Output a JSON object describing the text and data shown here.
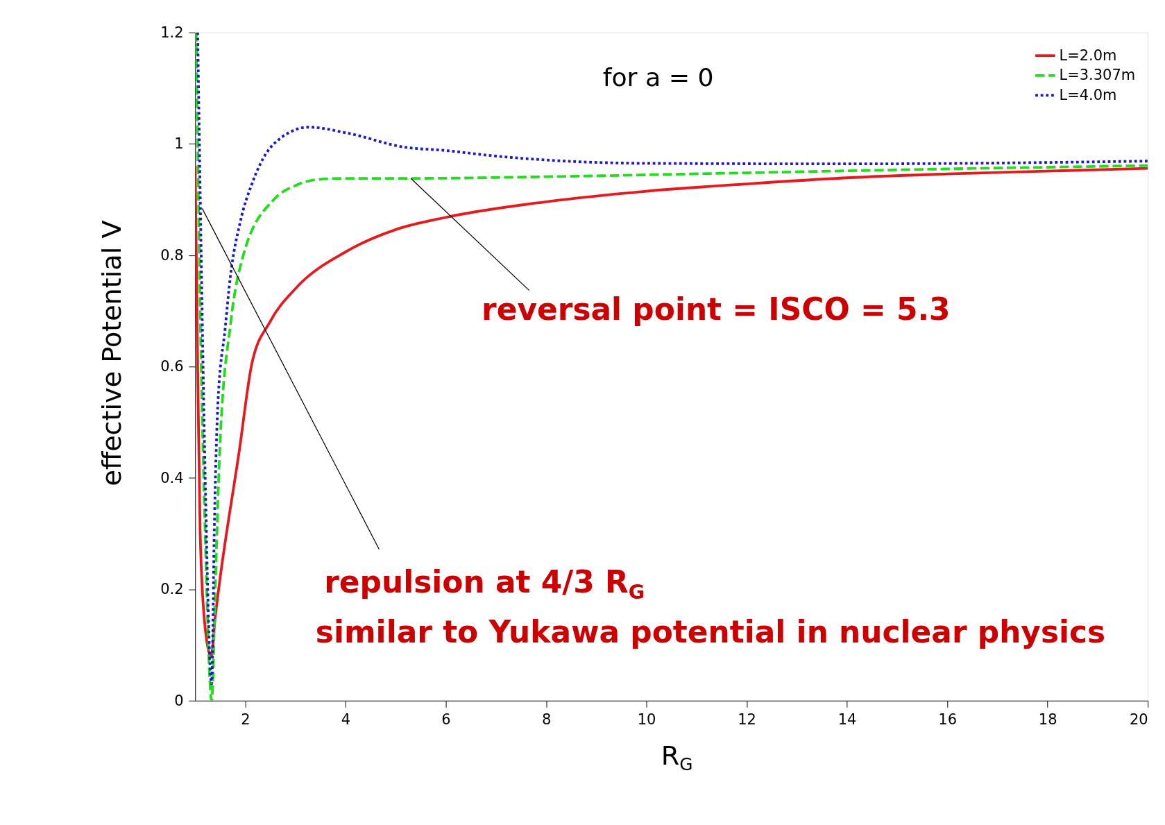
{
  "chart_data": {
    "type": "line",
    "xlabel": "R$_{G}$",
    "ylabel": "effective Potential V",
    "xlim": [
      1,
      20
    ],
    "xticks": [
      2,
      4,
      6,
      8,
      10,
      12,
      14,
      16,
      18,
      20
    ],
    "ylim": [
      0,
      1.2
    ],
    "yticks": [
      0,
      0.2,
      0.4,
      0.6,
      0.8,
      1,
      1.2
    ],
    "grid": false,
    "legend": "top right",
    "marker": "none",
    "series": [
      {
        "name": "L=2.0m",
        "color": "#e8191c",
        "line_style": "solid",
        "x": [
          1.0,
          1.05,
          1.1,
          1.2,
          1.32,
          1.4,
          1.49,
          1.88,
          2.13,
          2.49,
          3,
          4,
          5,
          6,
          8,
          10,
          12,
          14,
          16,
          20
        ],
        "values": [
          0.96,
          0.6,
          0.3,
          0.13,
          0.08,
          0.15,
          0.215,
          0.449,
          0.605,
          0.68,
          0.74,
          0.806,
          0.846,
          0.868,
          0.896,
          0.915,
          0.928,
          0.939,
          0.946,
          0.956
        ]
      },
      {
        "name": "L=3.307m",
        "color": "#22dd1c",
        "line_style": "dashed",
        "x": [
          1.02,
          1.1,
          1.2,
          1.33,
          1.4,
          1.49,
          1.71,
          1.96,
          2.57,
          3,
          3.44,
          4,
          5.3,
          8,
          12,
          16,
          20
        ],
        "values": [
          1.2,
          0.7,
          0.3,
          0,
          0.2,
          0.449,
          0.68,
          0.8,
          0.9,
          0.925,
          0.936,
          0.938,
          0.938,
          0.941,
          0.948,
          0.955,
          0.961
        ]
      },
      {
        "name": "L=4.0m",
        "color": "#1a1ac8",
        "line_style": "dotted",
        "x": [
          1.05,
          1.12,
          1.2,
          1.33,
          1.38,
          1.45,
          1.6,
          1.7,
          1.9,
          2.14,
          2.57,
          3.27,
          4,
          5.18,
          6,
          7,
          8,
          10,
          14,
          20
        ],
        "values": [
          1.2,
          0.8,
          0.4,
          0.03,
          0.3,
          0.527,
          0.67,
          0.76,
          0.86,
          0.93,
          1.0,
          1.03,
          1.02,
          0.994,
          0.988,
          0.978,
          0.971,
          0.965,
          0.964,
          0.969
        ]
      }
    ],
    "annotations": [
      "for a = 0",
      {
        "text": "reversal point = ISCO = 5.3",
        "x": 5.3,
        "y": 0.938
      },
      {
        "text": "repulsion at 4/3 R$_{G}$",
        "x": 1.14,
        "y": 0.884
      },
      "similar to Yukawa potential in nuclear physics"
    ]
  }
}
